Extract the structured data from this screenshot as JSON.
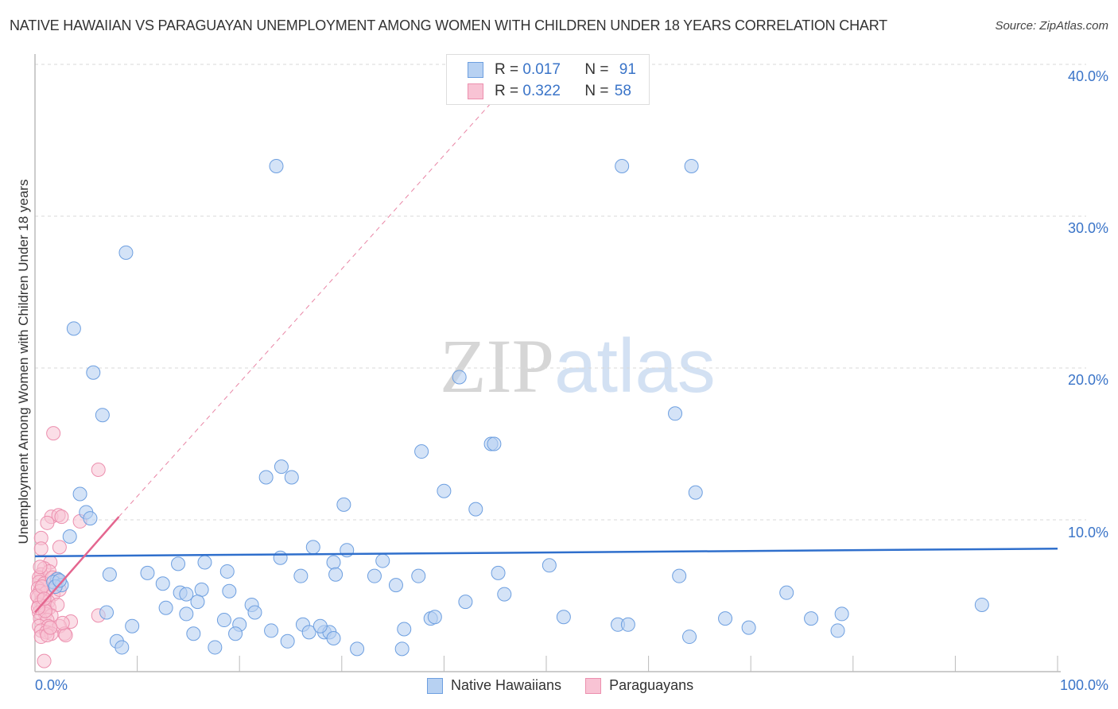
{
  "header": {
    "title": "NATIVE HAWAIIAN VS PARAGUAYAN UNEMPLOYMENT AMONG WOMEN WITH CHILDREN UNDER 18 YEARS CORRELATION CHART",
    "source": "Source: ZipAtlas.com"
  },
  "watermark": {
    "zip": "ZIP",
    "atlas": "atlas"
  },
  "legend_top": {
    "rows": [
      {
        "r_label": "R =",
        "r_value": "0.017",
        "n_label": "N =",
        "n_value": "91"
      },
      {
        "r_label": "R =",
        "r_value": "0.322",
        "n_label": "N =",
        "n_value": "58"
      }
    ]
  },
  "legend_bottom": {
    "items": [
      "Native Hawaiians",
      "Paraguayans"
    ]
  },
  "axes": {
    "ylabel": "Unemployment Among Women with Children Under 18 years",
    "yticks": [
      "40.0%",
      "30.0%",
      "20.0%",
      "10.0%"
    ],
    "xticks": [
      "0.0%",
      "100.0%"
    ]
  },
  "colors": {
    "blue_fill": "#b7d1f2",
    "blue_stroke": "#6d9fe0",
    "blue_line": "#2f6fcc",
    "pink_fill": "#f8c3d4",
    "pink_stroke": "#ec8fae",
    "pink_line": "#e4668f",
    "tick_text": "#3a74c8"
  },
  "chart_data": {
    "type": "scatter",
    "title": "NATIVE HAWAIIAN VS PARAGUAYAN UNEMPLOYMENT AMONG WOMEN WITH CHILDREN UNDER 18 YEARS CORRELATION CHART",
    "xlabel": "",
    "ylabel": "Unemployment Among Women with Children Under 18 years",
    "xlim": [
      0,
      100
    ],
    "ylim": [
      0,
      42
    ],
    "grid": true,
    "legend_position": "bottom",
    "series": [
      {
        "name": "Native Hawaiians",
        "R": 0.017,
        "N": 91,
        "trend": {
          "x": [
            0,
            100
          ],
          "y": [
            7.6,
            8.1
          ]
        },
        "points": [
          [
            23.6,
            33.3
          ],
          [
            57.4,
            33.3
          ],
          [
            64.2,
            33.3
          ],
          [
            8.9,
            27.6
          ],
          [
            3.8,
            22.6
          ],
          [
            5.7,
            19.7
          ],
          [
            6.6,
            16.9
          ],
          [
            41.5,
            19.4
          ],
          [
            62.6,
            17.0
          ],
          [
            44.6,
            15.0
          ],
          [
            44.9,
            15.0
          ],
          [
            37.8,
            14.5
          ],
          [
            24.1,
            13.5
          ],
          [
            22.6,
            12.8
          ],
          [
            25.1,
            12.8
          ],
          [
            40.0,
            11.9
          ],
          [
            64.6,
            11.8
          ],
          [
            4.4,
            11.7
          ],
          [
            43.1,
            10.7
          ],
          [
            30.2,
            11.0
          ],
          [
            5.0,
            10.5
          ],
          [
            5.4,
            10.1
          ],
          [
            3.4,
            8.9
          ],
          [
            27.2,
            8.2
          ],
          [
            30.5,
            8.0
          ],
          [
            24.0,
            7.5
          ],
          [
            34.0,
            7.3
          ],
          [
            29.2,
            7.2
          ],
          [
            14.0,
            7.1
          ],
          [
            16.6,
            7.2
          ],
          [
            50.3,
            7.0
          ],
          [
            18.8,
            6.6
          ],
          [
            11.0,
            6.5
          ],
          [
            7.3,
            6.4
          ],
          [
            26.0,
            6.3
          ],
          [
            29.4,
            6.4
          ],
          [
            33.2,
            6.3
          ],
          [
            37.5,
            6.3
          ],
          [
            45.3,
            6.5
          ],
          [
            63.0,
            6.3
          ],
          [
            2.2,
            6.1
          ],
          [
            1.8,
            5.9
          ],
          [
            2.6,
            5.7
          ],
          [
            12.5,
            5.8
          ],
          [
            35.3,
            5.7
          ],
          [
            16.3,
            5.4
          ],
          [
            19.0,
            5.3
          ],
          [
            14.2,
            5.2
          ],
          [
            14.8,
            5.1
          ],
          [
            45.9,
            5.1
          ],
          [
            73.5,
            5.2
          ],
          [
            15.9,
            4.6
          ],
          [
            12.8,
            4.2
          ],
          [
            21.2,
            4.4
          ],
          [
            42.1,
            4.6
          ],
          [
            92.6,
            4.4
          ],
          [
            7.0,
            3.9
          ],
          [
            14.8,
            3.8
          ],
          [
            21.5,
            3.9
          ],
          [
            18.5,
            3.4
          ],
          [
            20.0,
            3.1
          ],
          [
            38.7,
            3.5
          ],
          [
            39.1,
            3.6
          ],
          [
            51.7,
            3.6
          ],
          [
            67.5,
            3.5
          ],
          [
            75.9,
            3.5
          ],
          [
            78.9,
            3.8
          ],
          [
            9.5,
            3.0
          ],
          [
            26.2,
            3.1
          ],
          [
            57.0,
            3.1
          ],
          [
            58.0,
            3.1
          ],
          [
            15.5,
            2.5
          ],
          [
            19.6,
            2.5
          ],
          [
            23.1,
            2.7
          ],
          [
            26.8,
            2.6
          ],
          [
            28.3,
            2.6
          ],
          [
            28.8,
            2.6
          ],
          [
            36.1,
            2.8
          ],
          [
            69.8,
            2.9
          ],
          [
            78.5,
            2.7
          ],
          [
            29.2,
            2.2
          ],
          [
            64.0,
            2.3
          ],
          [
            8.0,
            2.0
          ],
          [
            8.5,
            1.6
          ],
          [
            24.7,
            2.0
          ],
          [
            17.6,
            1.6
          ],
          [
            31.5,
            1.5
          ],
          [
            35.9,
            1.5
          ],
          [
            27.9,
            3.0
          ],
          [
            2.0,
            5.6
          ],
          [
            2.4,
            6.0
          ]
        ]
      },
      {
        "name": "Paraguayans",
        "R": 0.322,
        "N": 58,
        "trend": {
          "x": [
            0,
            8.2
          ],
          "y": [
            3.9,
            10.2
          ],
          "dashed_extension_to": [
            48,
            40.0
          ]
        },
        "points": [
          [
            1.8,
            15.7
          ],
          [
            6.2,
            13.3
          ],
          [
            1.6,
            10.2
          ],
          [
            2.3,
            10.3
          ],
          [
            2.6,
            10.2
          ],
          [
            4.4,
            9.9
          ],
          [
            1.2,
            9.8
          ],
          [
            0.6,
            8.8
          ],
          [
            0.6,
            8.1
          ],
          [
            2.4,
            8.2
          ],
          [
            1.5,
            7.2
          ],
          [
            0.9,
            6.8
          ],
          [
            0.6,
            6.4
          ],
          [
            0.4,
            6.2
          ],
          [
            1.4,
            6.6
          ],
          [
            2.1,
            6.1
          ],
          [
            0.4,
            5.9
          ],
          [
            0.9,
            5.8
          ],
          [
            0.3,
            5.5
          ],
          [
            0.5,
            5.3
          ],
          [
            1.1,
            5.2
          ],
          [
            1.8,
            5.1
          ],
          [
            0.3,
            4.9
          ],
          [
            0.7,
            4.7
          ],
          [
            1.3,
            4.6
          ],
          [
            0.4,
            4.4
          ],
          [
            0.8,
            4.3
          ],
          [
            1.4,
            4.2
          ],
          [
            2.2,
            4.4
          ],
          [
            0.4,
            3.9
          ],
          [
            1.0,
            3.8
          ],
          [
            1.6,
            3.7
          ],
          [
            6.2,
            3.7
          ],
          [
            0.5,
            3.5
          ],
          [
            1.2,
            3.4
          ],
          [
            3.5,
            3.3
          ],
          [
            0.4,
            3.0
          ],
          [
            1.3,
            3.0
          ],
          [
            2.4,
            3.0
          ],
          [
            0.6,
            2.7
          ],
          [
            1.1,
            2.6
          ],
          [
            1.6,
            2.5
          ],
          [
            2.9,
            2.5
          ],
          [
            0.6,
            2.3
          ],
          [
            1.2,
            2.4
          ],
          [
            3.0,
            2.4
          ],
          [
            0.9,
            0.7
          ],
          [
            0.2,
            5.0
          ],
          [
            0.7,
            5.6
          ],
          [
            1.9,
            5.6
          ],
          [
            1.0,
            4.0
          ],
          [
            2.7,
            3.2
          ],
          [
            0.3,
            4.2
          ],
          [
            1.7,
            6.2
          ],
          [
            2.4,
            5.4
          ],
          [
            0.5,
            6.9
          ],
          [
            1.5,
            2.9
          ],
          [
            0.9,
            4.8
          ]
        ]
      }
    ]
  }
}
